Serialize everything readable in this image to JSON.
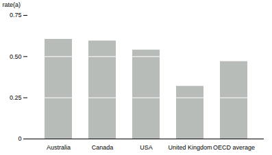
{
  "chart_data": {
    "type": "bar",
    "categories": [
      "Australia",
      "Canada",
      "USA",
      "United Kingdom",
      "OECD average"
    ],
    "values": [
      0.605,
      0.595,
      0.54,
      0.32,
      0.47
    ],
    "dividers": [
      0.25,
      0.5
    ],
    "color": "#b8bcb8",
    "ylabel": "rate(a)",
    "ylim": [
      0,
      0.75
    ],
    "yticks": [
      0,
      0.25,
      {
        "value": 0.5,
        "label": "0.50"
      },
      0.75
    ],
    "grid": false
  }
}
